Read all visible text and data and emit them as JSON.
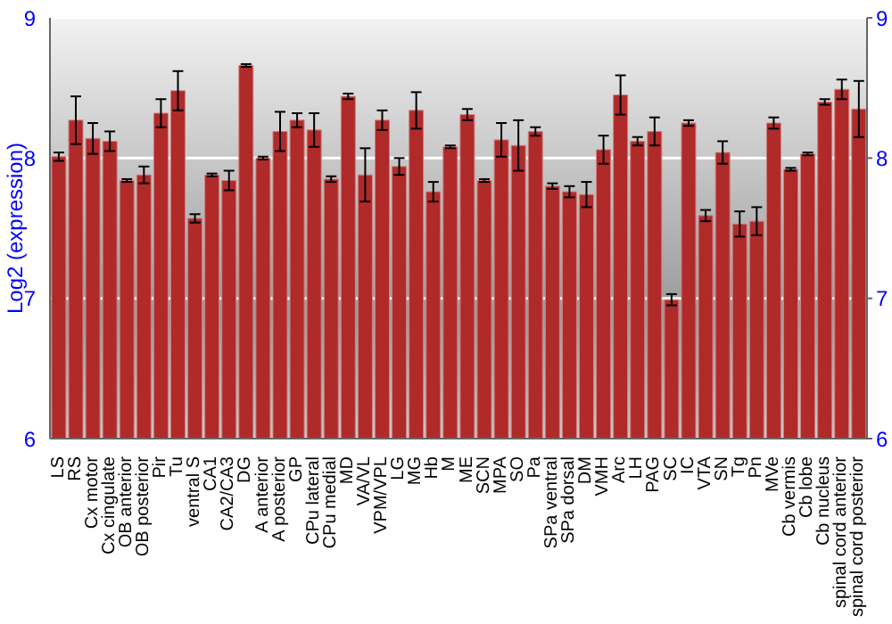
{
  "chart_data": {
    "type": "bar",
    "ylabel": "Log2 (expression)",
    "categories": [
      "LS",
      "RS",
      "Cx motor",
      "Cx cingulate",
      "OB anterior",
      "OB posterior",
      "Pir",
      "Tu",
      "ventral S",
      "CA1",
      "CA2/CA3",
      "DG",
      "A anterior",
      "A posterior",
      "GP",
      "CPu lateral",
      "CPu medial",
      "MD",
      "VA/VL",
      "VPM/VPL",
      "LG",
      "MG",
      "Hb",
      "M",
      "ME",
      "SCN",
      "MPA",
      "SO",
      "Pa",
      "SPa ventral",
      "SPa dorsal",
      "DM",
      "VMH",
      "Arc",
      "LH",
      "PAG",
      "SC",
      "IC",
      "VTA",
      "SN",
      "Tg",
      "Pn",
      "MVe",
      "Cb vermis",
      "Cb lobe",
      "Cb nucleus",
      "spinal cord anterior",
      "spinal cord posterior"
    ],
    "values": [
      8.01,
      8.27,
      8.14,
      8.12,
      7.84,
      7.88,
      8.32,
      8.48,
      7.57,
      7.88,
      7.84,
      8.66,
      8.0,
      8.19,
      8.27,
      8.2,
      7.85,
      8.44,
      7.88,
      8.27,
      7.94,
      8.34,
      7.76,
      8.08,
      8.31,
      7.84,
      8.13,
      8.09,
      8.19,
      7.8,
      7.76,
      7.74,
      8.06,
      8.45,
      8.12,
      8.19,
      6.99,
      8.25,
      7.59,
      8.04,
      7.53,
      7.55,
      8.25,
      7.92,
      8.03,
      8.4,
      8.49,
      8.35
    ],
    "errors": [
      0.03,
      0.17,
      0.11,
      0.07,
      0.01,
      0.06,
      0.1,
      0.14,
      0.03,
      0.01,
      0.07,
      0.01,
      0.01,
      0.14,
      0.05,
      0.12,
      0.02,
      0.02,
      0.19,
      0.07,
      0.06,
      0.13,
      0.07,
      0.01,
      0.04,
      0.01,
      0.12,
      0.18,
      0.03,
      0.02,
      0.04,
      0.09,
      0.1,
      0.14,
      0.03,
      0.1,
      0.04,
      0.02,
      0.04,
      0.08,
      0.09,
      0.1,
      0.04,
      0.01,
      0.01,
      0.02,
      0.07,
      0.2
    ],
    "color": "#b02a2a",
    "ylim": [
      6,
      9
    ],
    "yticks": [
      6,
      7,
      8,
      9
    ],
    "y2lim": [
      6,
      9
    ],
    "y2ticks": [
      6,
      7,
      8,
      9
    ],
    "grid": "y"
  }
}
